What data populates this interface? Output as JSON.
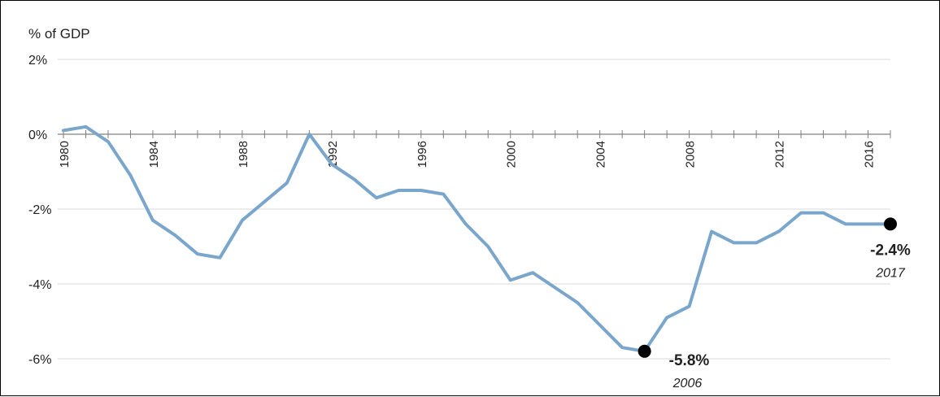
{
  "chart_data": {
    "type": "line",
    "title": "",
    "ylabel": "% of GDP",
    "xlabel": "",
    "ylim": [
      -6.5,
      2.2
    ],
    "y_ticks": [
      2,
      0,
      -2,
      -4,
      -6
    ],
    "y_tick_labels": [
      "2%",
      "0%",
      "-2%",
      "-4%",
      "-6%"
    ],
    "x_tick_labels": [
      "1980",
      "1984",
      "1988",
      "1992",
      "1996",
      "2000",
      "2004",
      "2008",
      "2012",
      "2016"
    ],
    "grid": true,
    "legend": "none",
    "series": [
      {
        "color": "#7aa6cc",
        "x": [
          1980,
          1981,
          1982,
          1983,
          1984,
          1985,
          1986,
          1987,
          1988,
          1989,
          1990,
          1991,
          1992,
          1993,
          1994,
          1995,
          1996,
          1997,
          1998,
          1999,
          2000,
          2001,
          2002,
          2003,
          2004,
          2005,
          2006,
          2007,
          2008,
          2009,
          2010,
          2011,
          2012,
          2013,
          2014,
          2015,
          2016,
          2017
        ],
        "values": [
          0.1,
          0.2,
          -0.2,
          -1.1,
          -2.3,
          -2.7,
          -3.2,
          -3.3,
          -2.3,
          -1.8,
          -1.3,
          0.0,
          -0.8,
          -1.2,
          -1.7,
          -1.5,
          -1.5,
          -1.6,
          -2.4,
          -3.0,
          -3.9,
          -3.7,
          -4.1,
          -4.5,
          -5.1,
          -5.7,
          -5.8,
          -4.9,
          -4.6,
          -2.6,
          -2.9,
          -2.9,
          -2.6,
          -2.1,
          -2.1,
          -2.4,
          -2.4,
          -2.4
        ]
      }
    ],
    "annotations": [
      {
        "x": 2006,
        "y": -5.8,
        "value_label": "-5.8%",
        "year_label": "2006"
      },
      {
        "x": 2017,
        "y": -2.4,
        "value_label": "-2.4%",
        "year_label": "2017"
      }
    ]
  }
}
